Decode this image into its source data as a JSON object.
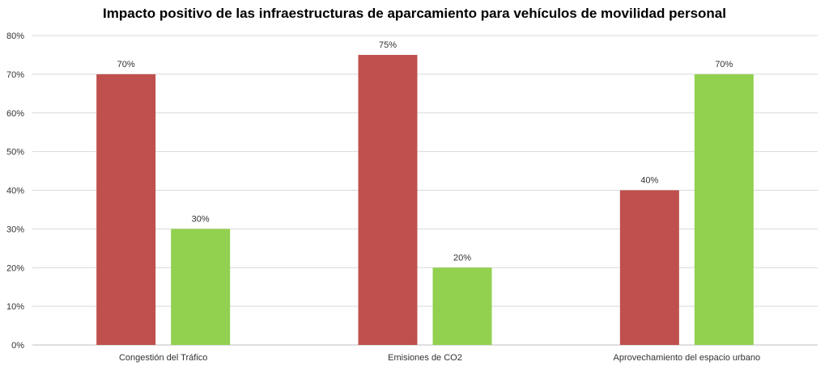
{
  "chart_data": {
    "type": "bar",
    "title": "Impacto positivo de las infraestructuras de aparcamiento para vehículos de movilidad personal",
    "xlabel": "",
    "ylabel": "",
    "categories": [
      "Congestión del Tráfico",
      "Emisiones de CO2",
      "Aprovechamiento del espacio urbano"
    ],
    "series": [
      {
        "values": [
          70,
          75,
          40
        ],
        "color": "#c0504d"
      },
      {
        "values": [
          30,
          20,
          70
        ],
        "color": "#92d050"
      }
    ],
    "ylim": [
      0,
      80
    ],
    "yticks": [
      0,
      10,
      20,
      30,
      40,
      50,
      60,
      70,
      80
    ],
    "ytick_labels": [
      "0%",
      "10%",
      "20%",
      "30%",
      "40%",
      "50%",
      "60%",
      "70%",
      "80%"
    ],
    "data_labels": [
      [
        "70%",
        "75%",
        "40%"
      ],
      [
        "30%",
        "20%",
        "70%"
      ]
    ],
    "grid": true,
    "legend": "none"
  }
}
